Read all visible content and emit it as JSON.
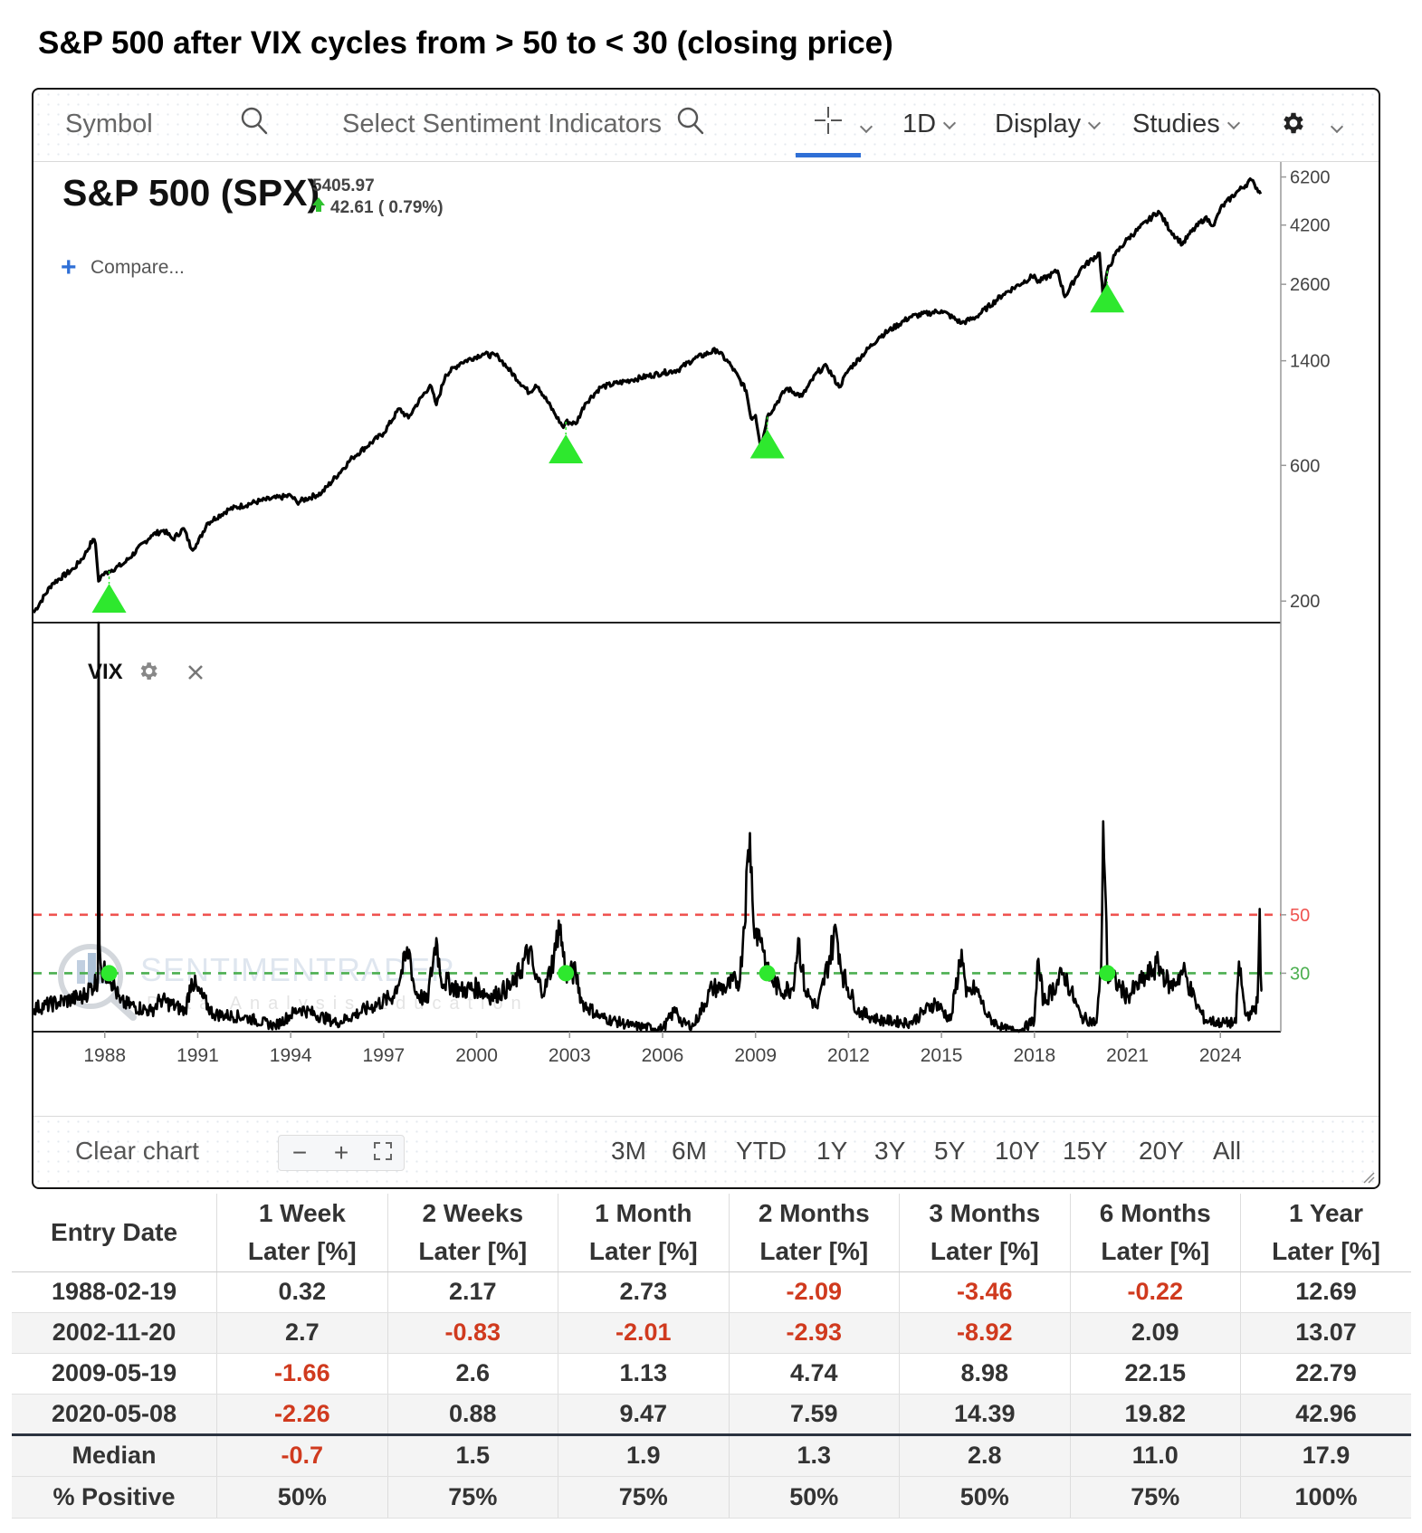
{
  "page_title": "S&P 500 after VIX cycles from > 50 to < 30 (closing price)",
  "toolbar": {
    "symbol_placeholder": "Symbol",
    "sentiment_placeholder": "Select Sentiment Indicators",
    "interval_label": "1D",
    "display_label": "Display",
    "studies_label": "Studies"
  },
  "price_panel": {
    "title": "S&P 500 (SPX)",
    "last_price": "5405.97",
    "change": "42.61 ( 0.79%)",
    "compare_label": "Compare...",
    "watermark": "SENTIMENTRADER",
    "watermark_sub": "Data Analysis Education"
  },
  "vix_panel": {
    "label": "VIX"
  },
  "bottom_bar": {
    "clear_chart_label": "Clear chart",
    "zoom_out_label": "−",
    "zoom_in_label": "+",
    "ranges": [
      "3M",
      "6M",
      "YTD",
      "1Y",
      "3Y",
      "5Y",
      "10Y",
      "15Y",
      "20Y",
      "All"
    ]
  },
  "colors": {
    "price_line": "#000000",
    "signal_marker": "#2ee82e",
    "vix_upper_threshold": "#ef5350",
    "vix_lower_threshold": "#4caf50",
    "negative_value": "#d03a1e",
    "active_tab": "#2f6fd6"
  },
  "chart_data": [
    {
      "type": "line",
      "name": "spx",
      "scale": "log",
      "x_range": [
        1985.7,
        2025.95
      ],
      "ylim": [
        168,
        7000
      ],
      "y_ticks": [
        200,
        600,
        1400,
        2600,
        4200,
        6200
      ],
      "x_ticks": [
        1988,
        1991,
        1994,
        1997,
        2000,
        2003,
        2006,
        2009,
        2012,
        2015,
        2018,
        2021,
        2024
      ],
      "series": [
        {
          "x": [
            1985.7,
            1986.3,
            1987.0,
            1987.35,
            1987.62,
            1987.7,
            1987.8,
            1987.88,
            1988.14,
            1988.6,
            1989.5,
            1989.9,
            1990.2,
            1990.55,
            1990.8,
            1991.0,
            1991.3,
            1992.0,
            1993.0,
            1994.0,
            1994.2,
            1995.0,
            1996.0,
            1997.0,
            1997.5,
            1997.8,
            1998.0,
            1998.5,
            1998.7,
            1999.0,
            1999.5,
            2000.2,
            2000.7,
            2001.0,
            2001.7,
            2001.9,
            2002.0,
            2002.5,
            2002.8,
            2002.88,
            2003.2,
            2003.5,
            2004.0,
            2005.0,
            2006.0,
            2006.5,
            2007.0,
            2007.75,
            2008.2,
            2008.7,
            2008.85,
            2009.0,
            2009.18,
            2009.38,
            2010.0,
            2010.5,
            2011.0,
            2011.3,
            2011.7,
            2012.0,
            2013.0,
            2014.0,
            2015.0,
            2015.65,
            2016.1,
            2017.0,
            2018.0,
            2018.1,
            2018.75,
            2018.98,
            2019.5,
            2020.1,
            2020.22,
            2020.35,
            2020.6,
            2021.0,
            2022.0,
            2022.4,
            2022.78,
            2023.0,
            2023.5,
            2023.8,
            2024.0,
            2024.5,
            2025.0,
            2025.1,
            2025.3
          ],
          "values": [
            182,
            230,
            260,
            290,
            330,
            318,
            235,
            245,
            255,
            270,
            340,
            355,
            330,
            360,
            305,
            320,
            375,
            420,
            450,
            470,
            445,
            480,
            640,
            780,
            950,
            880,
            960,
            1150,
            980,
            1250,
            1380,
            1480,
            1450,
            1320,
            1080,
            1150,
            1130,
            920,
            815,
            855,
            840,
            990,
            1130,
            1200,
            1270,
            1300,
            1420,
            1530,
            1350,
            1100,
            880,
            900,
            690,
            890,
            1120,
            1050,
            1280,
            1340,
            1130,
            1300,
            1700,
            2000,
            2100,
            1900,
            1990,
            2400,
            2800,
            2640,
            2900,
            2350,
            2950,
            3350,
            2300,
            2900,
            3300,
            3750,
            4700,
            4000,
            3600,
            3900,
            4450,
            4200,
            4800,
            5450,
            6050,
            5850,
            5405
          ]
        }
      ],
      "signal_markers": {
        "x": [
          1988.14,
          2002.88,
          2009.38,
          2020.35
        ],
        "values": [
          255,
          855,
          890,
          2900
        ]
      }
    },
    {
      "type": "line",
      "name": "vix",
      "x_range": [
        1985.7,
        2025.95
      ],
      "ylim": [
        10,
        150
      ],
      "y_ticks": [
        30,
        50
      ],
      "threshold_lines": [
        50,
        30
      ],
      "series": [
        {
          "x": [
            1985.7,
            1986.5,
            1987.3,
            1987.78,
            1987.8,
            1987.83,
            1987.9,
            1988.14,
            1988.5,
            1989.5,
            1989.8,
            1990.6,
            1990.8,
            1991.0,
            1991.5,
            1992.5,
            1993.5,
            1994.3,
            1995.5,
            1996.5,
            1997.3,
            1997.82,
            1998.0,
            1998.4,
            1998.7,
            1998.85,
            1999.5,
            2000.0,
            2000.5,
            2001.2,
            2001.7,
            2001.9,
            2002.2,
            2002.55,
            2002.65,
            2002.88,
            2003.2,
            2003.4,
            2004.0,
            2005.0,
            2006.0,
            2006.45,
            2006.6,
            2007.0,
            2007.6,
            2008.0,
            2008.5,
            2008.82,
            2008.9,
            2009.0,
            2009.2,
            2009.38,
            2009.8,
            2010.2,
            2010.38,
            2010.6,
            2011.0,
            2011.6,
            2011.8,
            2012.3,
            2013.0,
            2014.0,
            2014.8,
            2015.3,
            2015.65,
            2015.8,
            2016.1,
            2016.5,
            2017.0,
            2017.5,
            2018.0,
            2018.1,
            2018.3,
            2018.95,
            2019.5,
            2020.0,
            2020.15,
            2020.22,
            2020.3,
            2020.35,
            2020.7,
            2021.0,
            2022.0,
            2022.4,
            2022.8,
            2023.2,
            2023.5,
            2024.0,
            2024.5,
            2024.6,
            2024.8,
            2025.0,
            2025.2,
            2025.27,
            2025.3,
            2025.35
          ],
          "values": [
            18,
            20,
            22,
            28,
            150,
            40,
            30,
            30,
            20,
            17,
            21,
            17,
            28,
            24,
            16,
            15,
            12,
            18,
            13,
            18,
            22,
            38,
            24,
            20,
            42,
            28,
            24,
            25,
            22,
            26,
            38,
            28,
            24,
            38,
            48,
            30,
            30,
            20,
            15,
            12,
            11,
            18,
            13,
            12,
            25,
            25,
            28,
            78,
            55,
            45,
            42,
            30,
            24,
            25,
            42,
            24,
            18,
            45,
            30,
            17,
            14,
            13,
            20,
            14,
            38,
            22,
            25,
            15,
            11,
            10,
            14,
            34,
            20,
            30,
            15,
            13,
            30,
            82,
            55,
            30,
            26,
            22,
            33,
            25,
            31,
            20,
            14,
            13,
            13,
            34,
            16,
            16,
            20,
            52,
            30,
            24
          ]
        }
      ],
      "signal_markers": {
        "x": [
          1988.14,
          2002.88,
          2009.38,
          2020.35
        ],
        "values": [
          30,
          30,
          30,
          30
        ]
      }
    },
    {
      "type": "table",
      "columns": [
        {
          "line1": "Entry Date",
          "line2": ""
        },
        {
          "line1": "1 Week",
          "line2": "Later [%]"
        },
        {
          "line1": "2 Weeks",
          "line2": "Later [%]"
        },
        {
          "line1": "1 Month",
          "line2": "Later [%]"
        },
        {
          "line1": "2 Months",
          "line2": "Later [%]"
        },
        {
          "line1": "3 Months",
          "line2": "Later [%]"
        },
        {
          "line1": "6 Months",
          "line2": "Later [%]"
        },
        {
          "line1": "1 Year",
          "line2": "Later [%]"
        }
      ],
      "rows": [
        [
          "1988-02-19",
          "0.32",
          "2.17",
          "2.73",
          "-2.09",
          "-3.46",
          "-0.22",
          "12.69"
        ],
        [
          "2002-11-20",
          "2.7",
          "-0.83",
          "-2.01",
          "-2.93",
          "-8.92",
          "2.09",
          "13.07"
        ],
        [
          "2009-05-19",
          "-1.66",
          "2.6",
          "1.13",
          "4.74",
          "8.98",
          "22.15",
          "22.79"
        ],
        [
          "2020-05-08",
          "-2.26",
          "0.88",
          "9.47",
          "7.59",
          "14.39",
          "19.82",
          "42.96"
        ]
      ],
      "summary": [
        [
          "Median",
          "-0.7",
          "1.5",
          "1.9",
          "1.3",
          "2.8",
          "11.0",
          "17.9"
        ],
        [
          "% Positive",
          "50%",
          "75%",
          "75%",
          "50%",
          "50%",
          "75%",
          "100%"
        ]
      ]
    }
  ]
}
